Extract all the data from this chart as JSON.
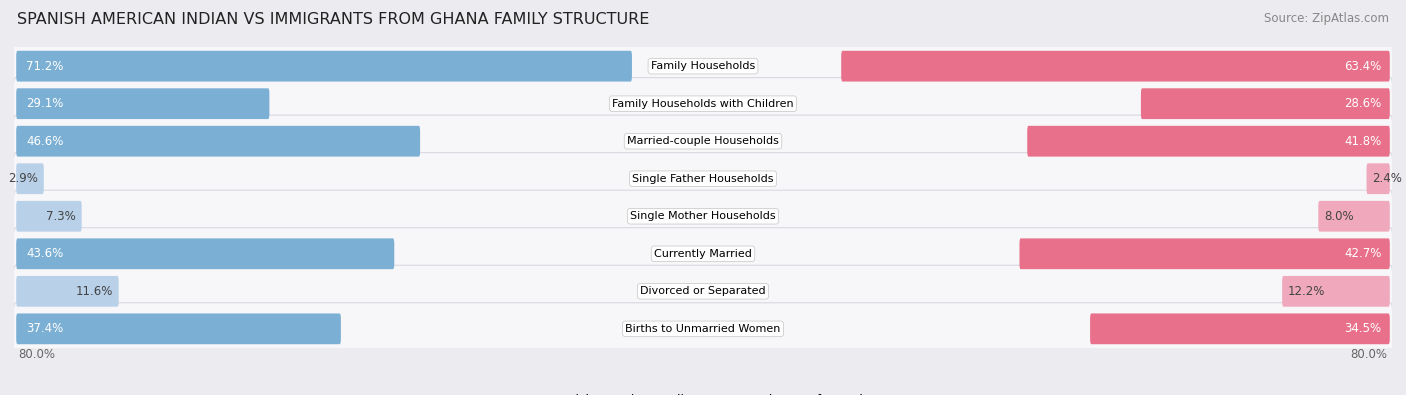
{
  "title": "SPANISH AMERICAN INDIAN VS IMMIGRANTS FROM GHANA FAMILY STRUCTURE",
  "source": "Source: ZipAtlas.com",
  "categories": [
    "Family Households",
    "Family Households with Children",
    "Married-couple Households",
    "Single Father Households",
    "Single Mother Households",
    "Currently Married",
    "Divorced or Separated",
    "Births to Unmarried Women"
  ],
  "left_values": [
    71.2,
    29.1,
    46.6,
    2.9,
    7.3,
    43.6,
    11.6,
    37.4
  ],
  "right_values": [
    63.4,
    28.6,
    41.8,
    2.4,
    8.0,
    42.7,
    12.2,
    34.5
  ],
  "left_color": "#7bafd4",
  "right_color": "#e8708a",
  "left_color_light": "#b8d0e8",
  "right_color_light": "#f0a8bc",
  "left_label": "Spanish American Indian",
  "right_label": "Immigrants from Ghana",
  "axis_max": 80.0,
  "axis_label": "80.0%",
  "background_color": "#ebebf0",
  "row_bg_color": "#f7f7fa",
  "title_fontsize": 11.5,
  "source_fontsize": 8.5,
  "bar_label_fontsize": 8.5,
  "category_fontsize": 8.0,
  "large_threshold": 15
}
